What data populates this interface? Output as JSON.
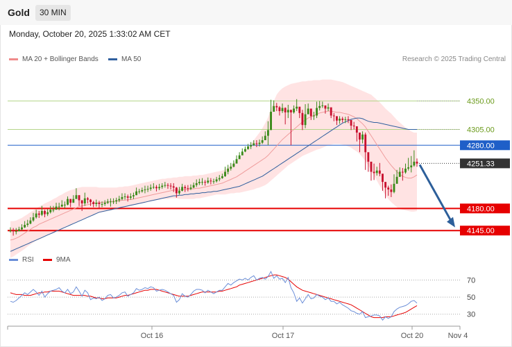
{
  "header": {
    "symbol": "Gold",
    "timeframe": "30 MIN",
    "datetime": "Monday, October 20, 2025 1:33:02 AM CET"
  },
  "legend": {
    "ma20_label": "MA 20 + Bollinger Bands",
    "ma50_label": "MA 50",
    "credit": "Research © 2025 Trading Central",
    "rsi_label": "RSI",
    "rsi_ma_label": "9MA"
  },
  "colors": {
    "candle_up": "#3a8a1a",
    "candle_down": "#c8102e",
    "bollinger_fill": "#ffdede",
    "ma20": "#ef9c9c",
    "ma50": "#2f5f9e",
    "resistance": "#b5d58a",
    "pivot": "#1f5fc8",
    "support": "#e60000",
    "arrow": "#2d5f9a",
    "rsi": "#6a8ed8",
    "rsi_ma": "#e60000"
  },
  "chart_data": [
    {
      "type": "candlestick",
      "title": "Gold 30 MIN",
      "x_tick_labels": [
        "Oct 16",
        "Oct 17",
        "Oct 20",
        "Nov 4"
      ],
      "ylim": [
        4120,
        4400
      ],
      "last_price": 4251.33,
      "levels": [
        {
          "label": "4350.00",
          "value": 4350,
          "kind": "resistance"
        },
        {
          "label": "4305.00",
          "value": 4305,
          "kind": "resistance"
        },
        {
          "label": "4280.00",
          "value": 4280,
          "kind": "pivot"
        },
        {
          "label": "4251.33",
          "value": 4251.33,
          "kind": "last"
        },
        {
          "label": "4180.00",
          "value": 4180,
          "kind": "support"
        },
        {
          "label": "4145.00",
          "value": 4145,
          "kind": "support"
        }
      ],
      "closes": [
        4145,
        4144,
        4144,
        4147,
        4150,
        4154,
        4156,
        4161,
        4166,
        4172,
        4170,
        4176,
        4171,
        4174,
        4178,
        4178,
        4183,
        4183,
        4186,
        4186,
        4195,
        4189,
        4195,
        4201,
        4193,
        4188,
        4196,
        4194,
        4190,
        4187,
        4189,
        4187,
        4187,
        4189,
        4191,
        4191,
        4191,
        4193,
        4195,
        4198,
        4199,
        4197,
        4199,
        4201,
        4207,
        4207,
        4209,
        4210,
        4211,
        4213,
        4214,
        4212,
        4214,
        4216,
        4217,
        4216,
        4215,
        4213,
        4204,
        4208,
        4214,
        4212,
        4211,
        4213,
        4217,
        4220,
        4222,
        4222,
        4221,
        4224,
        4223,
        4223,
        4226,
        4228,
        4231,
        4238,
        4243,
        4246,
        4251,
        4258,
        4264,
        4270,
        4274,
        4278,
        4280,
        4283,
        4282,
        4284,
        4288,
        4295,
        4304,
        4333,
        4342,
        4340,
        4334,
        4339,
        4332,
        4336,
        4332,
        4338,
        4341,
        4331,
        4312,
        4329,
        4338,
        4326,
        4327,
        4339,
        4342,
        4343,
        4338,
        4340,
        4327,
        4326,
        4319,
        4322,
        4320,
        4321,
        4320,
        4311,
        4310,
        4300,
        4289,
        4297,
        4269,
        4254,
        4238,
        4236,
        4240,
        4235,
        4222,
        4213,
        4210,
        4206,
        4219,
        4230,
        4238,
        4237,
        4243,
        4245,
        4248,
        4254,
        4251
      ],
      "highs": [
        4150,
        4149,
        4149,
        4151,
        4155,
        4160,
        4162,
        4166,
        4173,
        4178,
        4176,
        4184,
        4178,
        4179,
        4184,
        4184,
        4189,
        4189,
        4193,
        4191,
        4199,
        4195,
        4201,
        4212,
        4201,
        4193,
        4205,
        4198,
        4195,
        4192,
        4194,
        4192,
        4191,
        4193,
        4195,
        4196,
        4196,
        4197,
        4200,
        4204,
        4204,
        4202,
        4204,
        4205,
        4213,
        4211,
        4213,
        4216,
        4216,
        4218,
        4220,
        4217,
        4219,
        4220,
        4222,
        4220,
        4220,
        4220,
        4214,
        4214,
        4219,
        4217,
        4217,
        4218,
        4221,
        4226,
        4227,
        4228,
        4225,
        4229,
        4228,
        4227,
        4230,
        4233,
        4235,
        4246,
        4249,
        4252,
        4256,
        4264,
        4269,
        4275,
        4278,
        4282,
        4285,
        4288,
        4288,
        4289,
        4294,
        4302,
        4318,
        4352,
        4351,
        4347,
        4342,
        4346,
        4340,
        4344,
        4336,
        4343,
        4353,
        4338,
        4336,
        4345,
        4346,
        4335,
        4333,
        4349,
        4350,
        4349,
        4342,
        4346,
        4334,
        4331,
        4325,
        4326,
        4325,
        4325,
        4326,
        4317,
        4317,
        4305,
        4294,
        4302,
        4300,
        4261,
        4249,
        4251,
        4246,
        4252,
        4229,
        4219,
        4216,
        4218,
        4234,
        4241,
        4245,
        4244,
        4251,
        4260,
        4263,
        4272,
        4259
      ],
      "lows": [
        4142,
        4137,
        4139,
        4144,
        4145,
        4149,
        4151,
        4155,
        4159,
        4164,
        4165,
        4168,
        4166,
        4168,
        4172,
        4174,
        4178,
        4177,
        4182,
        4180,
        4185,
        4182,
        4189,
        4196,
        4184,
        4176,
        4184,
        4188,
        4184,
        4182,
        4183,
        4180,
        4182,
        4184,
        4187,
        4183,
        4187,
        4187,
        4190,
        4193,
        4194,
        4191,
        4194,
        4195,
        4201,
        4203,
        4205,
        4204,
        4206,
        4208,
        4211,
        4207,
        4209,
        4211,
        4213,
        4211,
        4210,
        4206,
        4197,
        4202,
        4207,
        4206,
        4207,
        4209,
        4212,
        4214,
        4217,
        4217,
        4216,
        4219,
        4218,
        4219,
        4221,
        4223,
        4227,
        4230,
        4234,
        4240,
        4245,
        4252,
        4259,
        4265,
        4269,
        4273,
        4274,
        4279,
        4277,
        4278,
        4282,
        4289,
        4280,
        4315,
        4334,
        4334,
        4327,
        4331,
        4313,
        4323,
        4280,
        4330,
        4334,
        4323,
        4304,
        4307,
        4331,
        4320,
        4320,
        4323,
        4335,
        4339,
        4330,
        4334,
        4323,
        4318,
        4312,
        4314,
        4316,
        4315,
        4315,
        4304,
        4305,
        4286,
        4269,
        4283,
        4241,
        4238,
        4224,
        4225,
        4232,
        4231,
        4208,
        4196,
        4200,
        4198,
        4204,
        4221,
        4230,
        4224,
        4235,
        4240,
        4237,
        4246,
        4246
      ],
      "ma20": [
        4130,
        4131,
        4133,
        4135,
        4138,
        4141,
        4144,
        4147,
        4150,
        4152,
        4155,
        4157,
        4159,
        4161,
        4163,
        4165,
        4167,
        4169,
        4171,
        4173,
        4175,
        4177,
        4179,
        4181,
        4183,
        4184,
        4185,
        4186,
        4187,
        4188,
        4189,
        4189,
        4190,
        4190,
        4190,
        4191,
        4191,
        4192,
        4192,
        4193,
        4193,
        4194,
        4194,
        4195,
        4196,
        4197,
        4198,
        4199,
        4200,
        4201,
        4202,
        4203,
        4204,
        4205,
        4206,
        4207,
        4208,
        4209,
        4209,
        4209,
        4210,
        4210,
        4210,
        4211,
        4211,
        4212,
        4212,
        4213,
        4214,
        4215,
        4216,
        4217,
        4218,
        4219,
        4220,
        4222,
        4224,
        4226,
        4228,
        4230,
        4233,
        4236,
        4239,
        4242,
        4245,
        4248,
        4251,
        4254,
        4257,
        4260,
        4264,
        4269,
        4274,
        4279,
        4284,
        4289,
        4293,
        4297,
        4301,
        4305,
        4309,
        4313,
        4317,
        4320,
        4323,
        4325,
        4327,
        4329,
        4331,
        4332,
        4333,
        4334,
        4334,
        4333,
        4332,
        4332,
        4331,
        4330,
        4329,
        4327,
        4325,
        4322,
        4318,
        4314,
        4309,
        4302,
        4295,
        4288,
        4281,
        4274,
        4267,
        4260,
        4254,
        4248,
        4243,
        4238,
        4234,
        4231,
        4229,
        4228,
        4228,
        4230,
        4233
      ],
      "ma50": [
        4112,
        4114,
        4116,
        4118,
        4120,
        4122,
        4124,
        4126,
        4128,
        4130,
        4132,
        4134,
        4136,
        4138,
        4140,
        4142,
        4144,
        4146,
        4148,
        4150,
        4152,
        4154,
        4156,
        4158,
        4160,
        4162,
        4164,
        4166,
        4168,
        4170,
        4172,
        4174,
        4175,
        4176,
        4177,
        4178,
        4179,
        4180,
        4181,
        4182,
        4183,
        4184,
        4185,
        4186,
        4187,
        4188,
        4189,
        4190,
        4191,
        4192,
        4193,
        4194,
        4195,
        4196,
        4197,
        4198,
        4199,
        4200,
        4200,
        4201,
        4201,
        4202,
        4202,
        4203,
        4203,
        4204,
        4204,
        4205,
        4205,
        4206,
        4206,
        4207,
        4207,
        4208,
        4209,
        4210,
        4211,
        4212,
        4213,
        4214,
        4215,
        4217,
        4219,
        4221,
        4223,
        4225,
        4227,
        4229,
        4231,
        4234,
        4237,
        4240,
        4243,
        4246,
        4249,
        4252,
        4255,
        4258,
        4261,
        4264,
        4267,
        4270,
        4273,
        4276,
        4279,
        4282,
        4285,
        4288,
        4291,
        4294,
        4297,
        4300,
        4303,
        4306,
        4309,
        4312,
        4315,
        4317,
        4319,
        4321,
        4322,
        4323,
        4323,
        4322,
        4320,
        4318,
        4317,
        4316,
        4316,
        4315,
        4314,
        4313,
        4312,
        4311,
        4310,
        4309,
        4308,
        4307,
        4306,
        4305,
        4305,
        4305,
        4305
      ],
      "bb_upper": [
        4160,
        4160,
        4161,
        4163,
        4165,
        4168,
        4171,
        4174,
        4177,
        4180,
        4183,
        4185,
        4188,
        4190,
        4192,
        4195,
        4197,
        4200,
        4202,
        4205,
        4207,
        4209,
        4210,
        4212,
        4213,
        4214,
        4214,
        4214,
        4214,
        4214,
        4214,
        4213,
        4213,
        4213,
        4213,
        4213,
        4213,
        4213,
        4214,
        4214,
        4215,
        4215,
        4216,
        4217,
        4218,
        4219,
        4220,
        4221,
        4222,
        4223,
        4224,
        4225,
        4226,
        4227,
        4227,
        4228,
        4228,
        4229,
        4229,
        4230,
        4230,
        4231,
        4231,
        4231,
        4232,
        4232,
        4233,
        4233,
        4234,
        4235,
        4236,
        4237,
        4238,
        4239,
        4240,
        4242,
        4245,
        4248,
        4252,
        4256,
        4261,
        4266,
        4271,
        4276,
        4282,
        4288,
        4294,
        4300,
        4307,
        4315,
        4324,
        4338,
        4350,
        4360,
        4366,
        4370,
        4373,
        4375,
        4377,
        4378,
        4379,
        4380,
        4381,
        4381,
        4382,
        4382,
        4383,
        4383,
        4383,
        4384,
        4384,
        4384,
        4384,
        4383,
        4382,
        4381,
        4380,
        4378,
        4376,
        4374,
        4372,
        4370,
        4368,
        4366,
        4364,
        4362,
        4360,
        4356,
        4352,
        4348,
        4343,
        4338,
        4334,
        4330,
        4325,
        4320,
        4316,
        4312,
        4308,
        4305,
        4302,
        4300,
        4300
      ],
      "bb_lower": [
        4102,
        4104,
        4107,
        4110,
        4113,
        4116,
        4120,
        4123,
        4126,
        4129,
        4131,
        4133,
        4136,
        4138,
        4140,
        4142,
        4144,
        4146,
        4148,
        4150,
        4152,
        4154,
        4156,
        4158,
        4160,
        4162,
        4164,
        4166,
        4168,
        4170,
        4172,
        4173,
        4174,
        4175,
        4176,
        4177,
        4178,
        4179,
        4180,
        4181,
        4182,
        4183,
        4184,
        4185,
        4186,
        4187,
        4188,
        4189,
        4190,
        4191,
        4192,
        4193,
        4194,
        4195,
        4195,
        4195,
        4196,
        4196,
        4196,
        4195,
        4195,
        4195,
        4195,
        4195,
        4195,
        4196,
        4196,
        4197,
        4198,
        4199,
        4200,
        4201,
        4202,
        4202,
        4202,
        4202,
        4203,
        4204,
        4204,
        4205,
        4205,
        4206,
        4207,
        4208,
        4209,
        4210,
        4212,
        4213,
        4215,
        4217,
        4220,
        4224,
        4228,
        4232,
        4236,
        4240,
        4244,
        4248,
        4251,
        4254,
        4257,
        4260,
        4263,
        4265,
        4267,
        4269,
        4271,
        4273,
        4274,
        4276,
        4278,
        4280,
        4281,
        4282,
        4282,
        4282,
        4281,
        4280,
        4278,
        4276,
        4273,
        4270,
        4266,
        4261,
        4255,
        4248,
        4240,
        4232,
        4224,
        4216,
        4208,
        4201,
        4195,
        4190,
        4186,
        4182,
        4179,
        4178,
        4177,
        4176,
        4175,
        4175,
        4176
      ]
    },
    {
      "type": "line",
      "title": "RSI",
      "ylim": [
        20,
        85
      ],
      "y_ticks": [
        30,
        50,
        70
      ],
      "rsi": [
        45,
        44,
        46,
        49,
        52,
        55,
        53,
        56,
        59,
        56,
        52,
        57,
        50,
        54,
        57,
        58,
        59,
        61,
        57,
        55,
        59,
        54,
        56,
        62,
        57,
        51,
        58,
        55,
        47,
        49,
        48,
        50,
        46,
        48,
        52,
        53,
        49,
        50,
        52,
        55,
        56,
        51,
        53,
        55,
        60,
        58,
        59,
        61,
        60,
        62,
        61,
        57,
        58,
        59,
        58,
        56,
        54,
        52,
        44,
        47,
        54,
        51,
        50,
        53,
        57,
        59,
        59,
        58,
        55,
        58,
        56,
        54,
        56,
        58,
        58,
        62,
        66,
        64,
        67,
        69,
        71,
        70,
        72,
        70,
        73,
        75,
        70,
        72,
        73,
        71,
        74,
        80,
        72,
        75,
        71,
        72,
        67,
        73,
        61,
        55,
        45,
        49,
        43,
        48,
        53,
        48,
        49,
        53,
        51,
        50,
        47,
        49,
        45,
        45,
        42,
        44,
        41,
        39,
        37,
        34,
        33,
        31,
        30,
        33,
        26,
        27,
        28,
        29,
        29,
        28,
        23,
        27,
        25,
        27,
        33,
        36,
        38,
        39,
        40,
        42,
        45,
        46,
        43
      ],
      "rsi_ma": [
        55,
        54,
        53,
        53,
        53,
        52,
        52,
        52,
        53,
        54,
        55,
        55,
        56,
        56,
        57,
        57,
        57,
        57,
        56,
        55,
        54,
        53,
        52,
        52,
        52,
        52,
        52,
        51,
        51,
        50,
        49,
        49,
        48,
        48,
        49,
        49,
        49,
        49,
        50,
        51,
        52,
        52,
        53,
        54,
        55,
        56,
        57,
        58,
        58,
        59,
        59,
        59,
        58,
        57,
        56,
        55,
        54,
        53,
        52,
        51,
        51,
        51,
        51,
        52,
        53,
        54,
        55,
        56,
        56,
        56,
        56,
        56,
        56,
        57,
        57,
        58,
        59,
        60,
        61,
        62,
        64,
        65,
        66,
        67,
        68,
        69,
        70,
        71,
        72,
        73,
        74,
        75,
        76,
        76,
        75,
        74,
        73,
        71,
        68,
        65,
        62,
        60,
        58,
        57,
        56,
        55,
        54,
        53,
        52,
        51,
        50,
        49,
        48,
        47,
        46,
        45,
        44,
        43,
        42,
        41,
        39,
        37,
        35,
        33,
        31,
        29,
        27,
        26,
        26,
        26,
        26,
        27,
        27,
        27,
        28,
        29,
        30,
        31,
        32,
        34,
        36,
        38,
        40
      ]
    }
  ]
}
